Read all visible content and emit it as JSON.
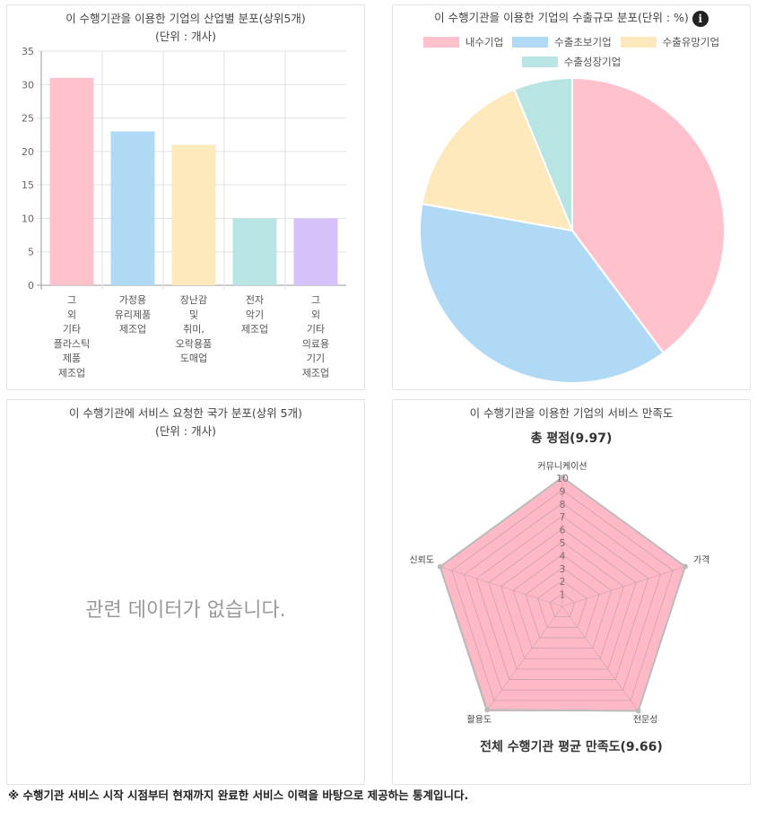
{
  "panels": {
    "industry": {
      "title": "이 수행기관을 이용한 기업의 산업별 분포(상위5개)",
      "subtitle": "(단위 : 개사)"
    },
    "export": {
      "title": "이 수행기관을 이용한 기업의 수출규모 분포(단위 : %)",
      "info_icon": "i"
    },
    "country": {
      "title": "이 수행기관에 서비스 요청한 국가 분포(상위 5개)",
      "subtitle": "(단위 : 개사)",
      "empty_message": "관련 데이터가 없습니다."
    },
    "satisfaction": {
      "title": "이 수행기관을 이용한 기업의 서비스 만족도",
      "total_score_label": "총 평점(9.97)",
      "average_label": "전체 수행기관 평균 만족도(9.66)"
    }
  },
  "footnote": "※ 수행기관 서비스 시작 시점부터 현재까지 완료한 서비스 이력을 바탕으로 제공하는 통계입니다.",
  "colors": {
    "pink": "#ffc1cc",
    "blue": "#b0d9f5",
    "yellow": "#fde9bb",
    "teal": "#b8e5e4",
    "purple": "#d6c2fb",
    "radar_fill": "#ffb8c6",
    "radar_line": "#c9a3ab"
  },
  "chart_data": [
    {
      "type": "bar",
      "title": "이 수행기관을 이용한 기업의 산업별 분포(상위5개) (단위 : 개사)",
      "categories": [
        [
          "그",
          "외",
          "기타",
          "플라스틱",
          "제품",
          "제조업"
        ],
        [
          "가정용",
          "유리제품",
          "제조업"
        ],
        [
          "장난감",
          "및",
          "취미,",
          "오락용품",
          "도매업"
        ],
        [
          "전자",
          "악기",
          "제조업"
        ],
        [
          "그",
          "외",
          "기타",
          "의료용",
          "기기",
          "제조업"
        ]
      ],
      "category_names": [
        "그 외 기타 플라스틱 제품 제조업",
        "가정용 유리제품 제조업",
        "장난감 및 취미, 오락용품 도매업",
        "전자 악기 제조업",
        "그 외 기타 의료용 기기 제조업"
      ],
      "values": [
        31,
        23,
        21,
        10,
        10
      ],
      "ylim": [
        0,
        35
      ],
      "yticks": [
        0,
        5,
        10,
        15,
        20,
        25,
        30,
        35
      ],
      "xlabel": "",
      "ylabel": "",
      "grid": true
    },
    {
      "type": "pie",
      "title": "이 수행기관을 이용한 기업의 수출규모 분포(단위 : %)",
      "labels": [
        "내수기업",
        "수출초보기업",
        "수출유망기업",
        "수출성장기업"
      ],
      "values": [
        39.8,
        38.0,
        16.0,
        6.2
      ],
      "legend_position": "top"
    },
    {
      "type": "radar",
      "title": "이 수행기관을 이용한 기업의 서비스 만족도",
      "labels": [
        "커뮤니케이션",
        "가격",
        "전문성",
        "활용도",
        "신뢰도"
      ],
      "values": [
        10,
        10,
        10,
        9.9,
        9.95
      ],
      "rlim": [
        0,
        10
      ],
      "rticks": [
        1,
        2,
        3,
        4,
        5,
        6,
        7,
        8,
        9,
        10
      ]
    }
  ]
}
